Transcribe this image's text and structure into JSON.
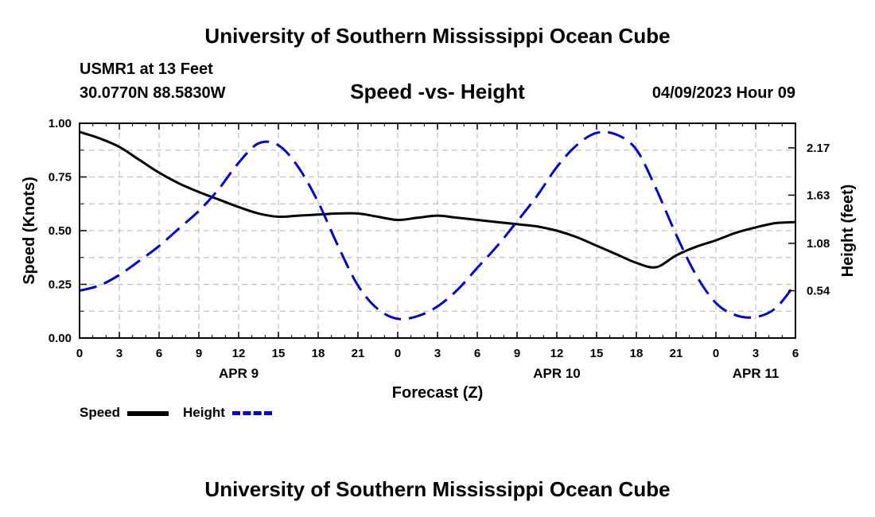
{
  "header": {
    "main_title": "University of Southern Mississippi Ocean Cube",
    "station": "USMR1 at 13 Feet",
    "coords": "30.0770N  88.5830W",
    "chart_title": "Speed -vs- Height",
    "datetime": "04/09/2023 Hour 09"
  },
  "footer": {
    "title": "University of Southern Mississippi Ocean Cube"
  },
  "legend": {
    "speed_label": "Speed",
    "height_label": "Height"
  },
  "colors": {
    "speed": "#000000",
    "height": "#0000cc",
    "grid": "#c0c0c0"
  },
  "chart_data": {
    "type": "line",
    "title": "Speed -vs- Height",
    "xlabel": "Forecast (Z)",
    "ylabel_left": "Speed (Knots)",
    "ylabel_right": "Height (feet)",
    "x_range": [
      0,
      54
    ],
    "x_ticks": [
      0,
      3,
      6,
      9,
      12,
      15,
      18,
      21,
      24,
      27,
      30,
      33,
      36,
      39,
      42,
      45,
      48,
      51,
      54
    ],
    "x_tick_labels": [
      "0",
      "3",
      "6",
      "9",
      "12",
      "15",
      "18",
      "21",
      "0",
      "3",
      "6",
      "9",
      "12",
      "15",
      "18",
      "21",
      "0",
      "3",
      "6"
    ],
    "date_labels": [
      {
        "x": 12,
        "label": "APR 9"
      },
      {
        "x": 36,
        "label": "APR 10"
      },
      {
        "x": 51,
        "label": "APR 11"
      }
    ],
    "y_left": {
      "range": [
        0,
        1
      ],
      "ticks": [
        0,
        0.25,
        0.5,
        0.75,
        1.0
      ],
      "tick_labels": [
        "0.00",
        "0.25",
        "0.50",
        "0.75",
        "1.00"
      ]
    },
    "y_right": {
      "range": [
        0.0,
        2.45
      ],
      "ticks": [
        0.54,
        1.08,
        1.63,
        2.17
      ],
      "tick_labels": [
        "0.54",
        "1.08",
        "1.63",
        "2.17"
      ]
    },
    "grid": true,
    "series": [
      {
        "name": "Speed",
        "axis": "left",
        "style": "solid",
        "x": [
          0,
          1.5,
          3,
          4.5,
          6,
          7.5,
          9,
          10.5,
          12,
          13.5,
          15,
          16.5,
          18,
          19.5,
          21,
          22.5,
          24,
          25.5,
          27,
          28.5,
          30,
          31.5,
          33,
          34.5,
          36,
          37.5,
          39,
          40.5,
          42,
          43.5,
          45,
          46.5,
          48,
          49.5,
          51,
          52.5,
          54
        ],
        "values": [
          0.96,
          0.93,
          0.89,
          0.83,
          0.77,
          0.72,
          0.68,
          0.645,
          0.61,
          0.58,
          0.565,
          0.57,
          0.575,
          0.58,
          0.58,
          0.565,
          0.55,
          0.56,
          0.57,
          0.56,
          0.55,
          0.54,
          0.53,
          0.52,
          0.5,
          0.47,
          0.43,
          0.39,
          0.35,
          0.33,
          0.385,
          0.425,
          0.455,
          0.49,
          0.515,
          0.535,
          0.54
        ]
      },
      {
        "name": "Height",
        "axis": "right",
        "style": "dashed",
        "x": [
          0,
          1.5,
          3,
          4.5,
          6,
          7.5,
          9,
          10.5,
          12,
          13.5,
          15,
          16.5,
          18,
          19.5,
          21,
          22.5,
          24,
          25.5,
          27,
          28.5,
          30,
          31.5,
          33,
          34.5,
          36,
          37.5,
          39,
          40.5,
          42,
          43.5,
          45,
          46.5,
          48,
          49.5,
          51,
          52.5,
          54
        ],
        "values": [
          0.54,
          0.6,
          0.72,
          0.88,
          1.05,
          1.25,
          1.45,
          1.7,
          2.0,
          2.22,
          2.2,
          1.95,
          1.55,
          1.05,
          0.6,
          0.33,
          0.22,
          0.25,
          0.36,
          0.55,
          0.8,
          1.05,
          1.33,
          1.62,
          1.95,
          2.2,
          2.34,
          2.32,
          2.15,
          1.7,
          1.18,
          0.72,
          0.4,
          0.26,
          0.24,
          0.34,
          0.62
        ]
      }
    ]
  }
}
